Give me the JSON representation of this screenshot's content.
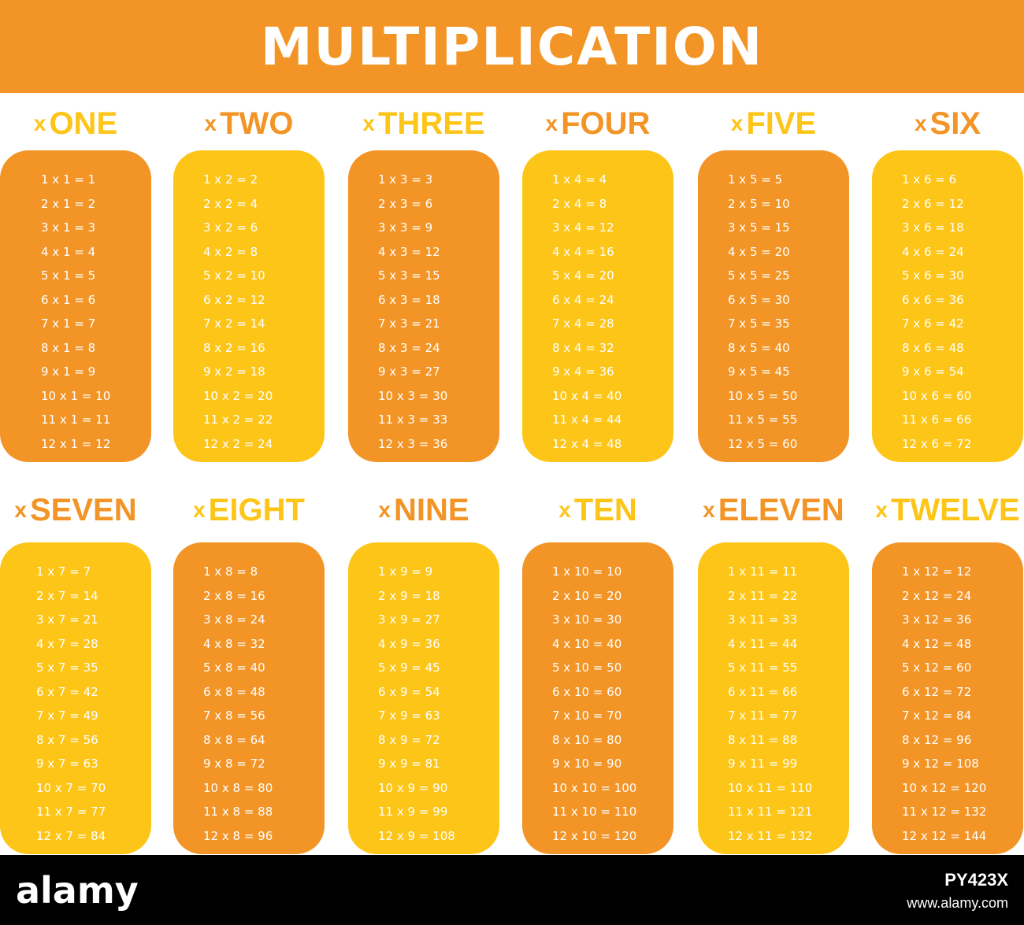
{
  "title": "MULTIPLICATION",
  "colors": {
    "orange": "#f39426",
    "yellow": "#fdc518",
    "header": "#f39426",
    "footer": "#000000"
  },
  "tables": [
    {
      "word": "ONE",
      "sign": "x",
      "card": "orange",
      "label": "yellow",
      "rows": [
        "1 x 1 = 1",
        "2 x 1 = 2",
        "3 x 1 = 3",
        "4 x 1 = 4",
        "5 x 1 = 5",
        "6 x 1 = 6",
        "7 x 1 = 7",
        "8 x 1 = 8",
        "9 x 1 = 9",
        "10 x 1 = 10",
        "11 x 1 = 11",
        "12 x 1 = 12"
      ]
    },
    {
      "word": "TWO",
      "sign": "x",
      "card": "yellow",
      "label": "orange",
      "rows": [
        "1 x 2 = 2",
        "2 x 2 = 4",
        "3 x 2 = 6",
        "4 x 2 = 8",
        "5 x 2 = 10",
        "6 x 2 = 12",
        "7 x 2 = 14",
        "8 x 2 = 16",
        "9 x 2 = 18",
        "10 x 2 = 20",
        "11 x 2 = 22",
        "12 x 2 = 24"
      ]
    },
    {
      "word": "THREE",
      "sign": "x",
      "card": "orange",
      "label": "yellow",
      "rows": [
        "1 x 3 = 3",
        "2 x 3 = 6",
        "3 x 3 = 9",
        "4 x 3 = 12",
        "5 x 3 = 15",
        "6 x 3 = 18",
        "7 x 3 = 21",
        "8 x 3 = 24",
        "9 x 3 = 27",
        "10 x 3 = 30",
        "11 x 3 = 33",
        "12 x 3 = 36"
      ]
    },
    {
      "word": "FOUR",
      "sign": "x",
      "card": "yellow",
      "label": "orange",
      "rows": [
        "1 x 4 = 4",
        "2 x 4 = 8",
        "3 x 4 = 12",
        "4 x 4 = 16",
        "5 x 4 = 20",
        "6 x 4 = 24",
        "7 x 4 = 28",
        "8 x 4 = 32",
        "9 x 4 = 36",
        "10 x 4 = 40",
        "11 x 4 = 44",
        "12 x 4 = 48"
      ]
    },
    {
      "word": "FIVE",
      "sign": "x",
      "card": "orange",
      "label": "yellow",
      "rows": [
        "1 x 5 = 5",
        "2 x 5 = 10",
        "3 x 5 = 15",
        "4 x 5 = 20",
        "5 x 5 = 25",
        "6 x 5 = 30",
        "7 x 5 = 35",
        "8 x 5 = 40",
        "9 x 5 = 45",
        "10 x 5 = 50",
        "11 x 5 = 55",
        "12 x 5 = 60"
      ]
    },
    {
      "word": "SIX",
      "sign": "x",
      "card": "yellow",
      "label": "orange",
      "rows": [
        "1 x 6 = 6",
        "2 x 6 = 12",
        "3 x 6 = 18",
        "4 x 6 = 24",
        "5 x 6 = 30",
        "6 x 6 = 36",
        "7 x 6 = 42",
        "8 x 6 = 48",
        "9 x 6 = 54",
        "10 x 6 = 60",
        "11 x 6 = 66",
        "12 x 6 = 72"
      ]
    },
    {
      "word": "SEVEN",
      "sign": "x",
      "card": "yellow",
      "label": "orange",
      "rows": [
        "1 x 7 = 7",
        "2 x 7 = 14",
        "3 x 7 = 21",
        "4 x 7 = 28",
        "5 x 7 = 35",
        "6 x 7 = 42",
        "7 x 7 = 49",
        "8 x 7 = 56",
        "9 x 7 = 63",
        "10 x 7 = 70",
        "11 x 7 = 77",
        "12 x 7 = 84"
      ]
    },
    {
      "word": "EIGHT",
      "sign": "x",
      "card": "orange",
      "label": "yellow",
      "rows": [
        "1 x 8 = 8",
        "2 x 8 = 16",
        "3 x 8 = 24",
        "4 x 8 = 32",
        "5 x 8 = 40",
        "6 x 8 = 48",
        "7 x 8 = 56",
        "8 x 8 = 64",
        "9 x 8 = 72",
        "10 x 8 = 80",
        "11 x 8 = 88",
        "12 x 8 = 96"
      ]
    },
    {
      "word": "NINE",
      "sign": "x",
      "card": "yellow",
      "label": "orange",
      "rows": [
        "1 x 9 = 9",
        "2 x 9 = 18",
        "3 x 9 = 27",
        "4 x 9 = 36",
        "5 x 9 = 45",
        "6 x 9 = 54",
        "7 x 9 = 63",
        "8 x 9 = 72",
        "9 x 9 = 81",
        "10 x 9 = 90",
        "11 x 9 = 99",
        "12 x 9 = 108"
      ]
    },
    {
      "word": "TEN",
      "sign": "x",
      "card": "orange",
      "label": "yellow",
      "rows": [
        "1 x 10 = 10",
        "2 x 10 = 20",
        "3 x 10 = 30",
        "4 x 10 = 40",
        "5 x 10 = 50",
        "6 x 10 = 60",
        "7 x 10 = 70",
        "8 x 10 = 80",
        "9 x 10 = 90",
        "10 x 10 = 100",
        "11 x 10 = 110",
        "12 x 10 = 120"
      ]
    },
    {
      "word": "ELEVEN",
      "sign": "x",
      "card": "yellow",
      "label": "orange",
      "rows": [
        "1 x 11 = 11",
        "2 x 11 = 22",
        "3 x 11 = 33",
        "4 x 11 = 44",
        "5 x 11 = 55",
        "6 x 11 = 66",
        "7 x 11 = 77",
        "8 x 11 = 88",
        "9 x 11 = 99",
        "10 x 11 = 110",
        "11 x 11 = 121",
        "12 x 11 = 132"
      ]
    },
    {
      "word": "TWELVE",
      "sign": "x",
      "card": "orange",
      "label": "yellow",
      "rows": [
        "1 x 12 = 12",
        "2 x 12 = 24",
        "3 x 12 = 36",
        "4 x 12 = 48",
        "5 x 12 = 60",
        "6 x 12 = 72",
        "7 x 12 = 84",
        "8 x 12 = 96",
        "9 x 12 = 108",
        "10 x 12 = 120",
        "11 x 12 = 132",
        "12 x 12 = 144"
      ]
    }
  ],
  "footer": {
    "brand": "alamy",
    "image_id": "PY423X",
    "url": "www.alamy.com"
  }
}
